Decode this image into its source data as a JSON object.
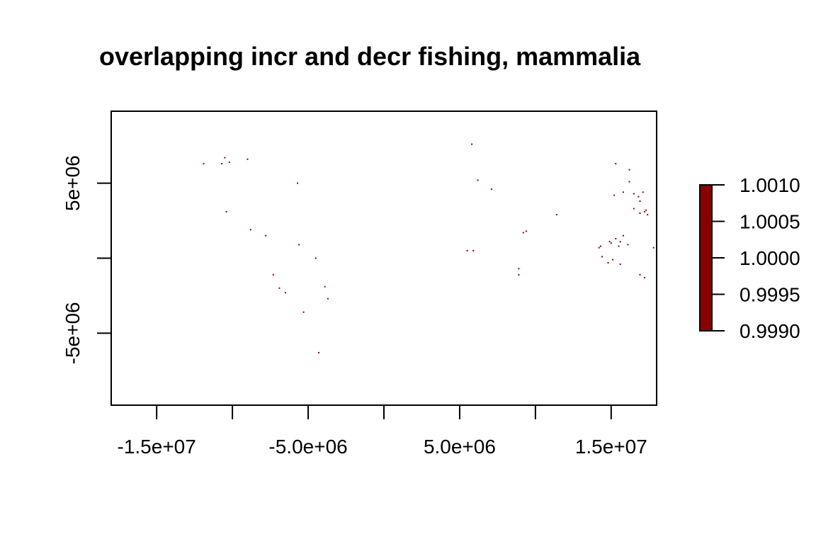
{
  "chart_data": {
    "type": "heatmap",
    "title": "overlapping incr and decr fishing, mammalia",
    "xlabel": "",
    "ylabel": "",
    "xlim": [
      -18000000,
      18000000
    ],
    "ylim": [
      -9800000,
      9800000
    ],
    "x_ticks": [
      {
        "value": -15000000,
        "label": "-1.5e+07"
      },
      {
        "value": -10000000,
        "label": ""
      },
      {
        "value": -5000000,
        "label": "-5.0e+06"
      },
      {
        "value": 0,
        "label": ""
      },
      {
        "value": 5000000,
        "label": "5.0e+06"
      },
      {
        "value": 10000000,
        "label": ""
      },
      {
        "value": 15000000,
        "label": "1.5e+07"
      }
    ],
    "y_ticks": [
      {
        "value": 5000000,
        "label": "5e+06"
      },
      {
        "value": 0,
        "label": ""
      },
      {
        "value": -5000000,
        "label": "-5e+06"
      }
    ],
    "legend": {
      "placement": "right",
      "range": [
        0.999,
        1.001
      ],
      "color": "#8b0000",
      "ticks": [
        {
          "value": 1.001,
          "label": "1.0010"
        },
        {
          "value": 1.0005,
          "label": "1.0005"
        },
        {
          "value": 1.0,
          "label": "1.0000"
        },
        {
          "value": 0.9995,
          "label": "0.9995"
        },
        {
          "value": 0.999,
          "label": "0.9990"
        }
      ]
    },
    "cell_value": 1,
    "cell_color": "#8b0000",
    "cells": [
      [
        -11900000,
        6300000
      ],
      [
        -10500000,
        6700000
      ],
      [
        -10700000,
        6300000
      ],
      [
        -10200000,
        6400000
      ],
      [
        -9000000,
        6600000
      ],
      [
        -10400000,
        3100000
      ],
      [
        -8800000,
        1900000
      ],
      [
        -7800000,
        1500000
      ],
      [
        -5700000,
        5000000
      ],
      [
        -5600000,
        900000
      ],
      [
        -4500000,
        0
      ],
      [
        -7300000,
        -1100000
      ],
      [
        -6900000,
        -2000000
      ],
      [
        -6500000,
        -2300000
      ],
      [
        -5300000,
        -3600000
      ],
      [
        -3900000,
        -1900000
      ],
      [
        -3700000,
        -2700000
      ],
      [
        -4300000,
        -6300000
      ],
      [
        5800000,
        7600000
      ],
      [
        6200000,
        5200000
      ],
      [
        7100000,
        4600000
      ],
      [
        11400000,
        2900000
      ],
      [
        5900000,
        500000
      ],
      [
        5500000,
        500000
      ],
      [
        9200000,
        1700000
      ],
      [
        9400000,
        1800000
      ],
      [
        8900000,
        -700000
      ],
      [
        8900000,
        -1100000
      ],
      [
        15200000,
        4200000
      ],
      [
        15800000,
        4400000
      ],
      [
        16500000,
        4300000
      ],
      [
        17100000,
        4400000
      ],
      [
        16800000,
        4100000
      ],
      [
        16200000,
        5100000
      ],
      [
        16900000,
        3800000
      ],
      [
        16500000,
        3300000
      ],
      [
        17200000,
        3100000
      ],
      [
        16900000,
        3000000
      ],
      [
        17300000,
        3200000
      ],
      [
        17400000,
        2900000
      ],
      [
        15300000,
        6300000
      ],
      [
        16200000,
        5900000
      ],
      [
        14300000,
        800000
      ],
      [
        14900000,
        1100000
      ],
      [
        15000000,
        1000000
      ],
      [
        15300000,
        1300000
      ],
      [
        15600000,
        1100000
      ],
      [
        15800000,
        1500000
      ],
      [
        15500000,
        800000
      ],
      [
        16100000,
        900000
      ],
      [
        14400000,
        100000
      ],
      [
        14800000,
        -300000
      ],
      [
        15100000,
        -100000
      ],
      [
        15600000,
        -400000
      ],
      [
        16900000,
        -1100000
      ],
      [
        17200000,
        -1300000
      ],
      [
        17800000,
        700000
      ],
      [
        14200000,
        700000
      ]
    ]
  }
}
